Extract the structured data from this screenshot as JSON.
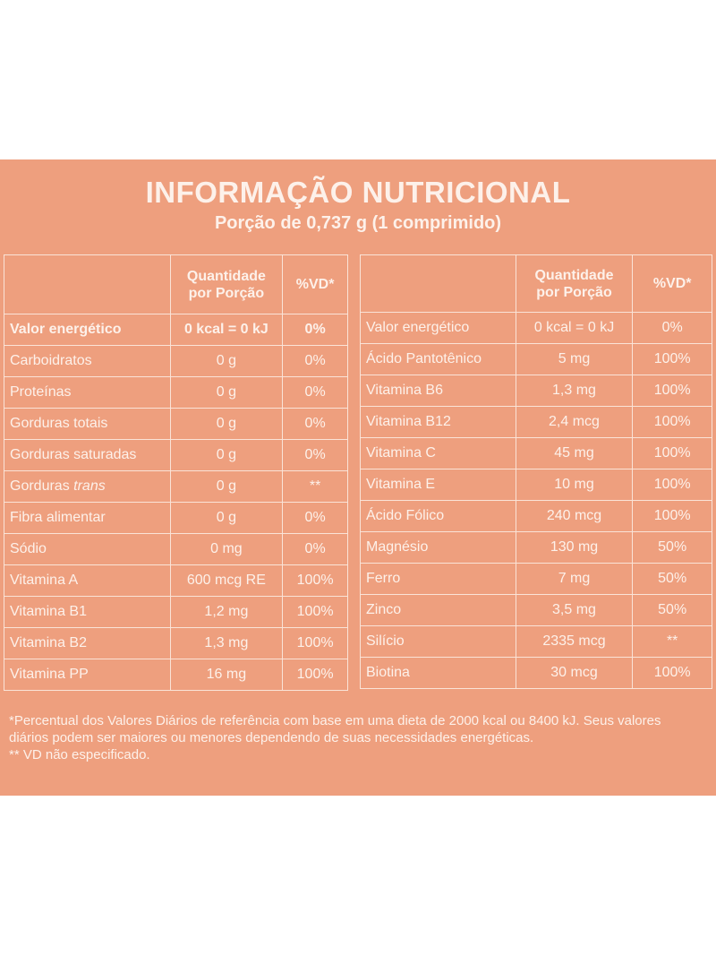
{
  "title": "INFORMAÇÃO NUTRICIONAL",
  "subtitle": "Porção de 0,737 g (1 comprimido)",
  "headers": {
    "qty_line1": "Quantidade",
    "qty_line2": "por Porção",
    "vd": "%VD*"
  },
  "left_rows": [
    {
      "name": "Valor energético",
      "amount": "0 kcal = 0 kJ",
      "vd": "0%"
    },
    {
      "name": "Carboidratos",
      "amount": "0 g",
      "vd": "0%"
    },
    {
      "name": "Proteínas",
      "amount": "0 g",
      "vd": "0%"
    },
    {
      "name": "Gorduras totais",
      "amount": "0 g",
      "vd": "0%"
    },
    {
      "name": "Gorduras saturadas",
      "amount": "0 g",
      "vd": "0%"
    },
    {
      "name": "Gorduras",
      "name_italic": "trans",
      "amount": "0 g",
      "vd": "**"
    },
    {
      "name": "Fibra alimentar",
      "amount": "0 g",
      "vd": "0%"
    },
    {
      "name": "Sódio",
      "amount": "0 mg",
      "vd": "0%"
    },
    {
      "name": "Vitamina A",
      "amount": "600 mcg RE",
      "vd": "100%"
    },
    {
      "name": "Vitamina B1",
      "amount": "1,2 mg",
      "vd": "100%"
    },
    {
      "name": "Vitamina B2",
      "amount": "1,3 mg",
      "vd": "100%"
    },
    {
      "name": "Vitamina PP",
      "amount": "16 mg",
      "vd": "100%"
    }
  ],
  "right_rows": [
    {
      "name": "Valor energético",
      "amount": "0 kcal = 0 kJ",
      "vd": "0%"
    },
    {
      "name": "Ácido Pantotênico",
      "amount": "5 mg",
      "vd": "100%"
    },
    {
      "name": "Vitamina B6",
      "amount": "1,3 mg",
      "vd": "100%"
    },
    {
      "name": "Vitamina B12",
      "amount": "2,4 mcg",
      "vd": "100%"
    },
    {
      "name": "Vitamina C",
      "amount": "45 mg",
      "vd": "100%"
    },
    {
      "name": "Vitamina E",
      "amount": "10 mg",
      "vd": "100%"
    },
    {
      "name": "Ácido Fólico",
      "amount": "240 mcg",
      "vd": "100%"
    },
    {
      "name": "Magnésio",
      "amount": "130 mg",
      "vd": "50%"
    },
    {
      "name": "Ferro",
      "amount": "7 mg",
      "vd": "50%"
    },
    {
      "name": "Zinco",
      "amount": "3,5 mg",
      "vd": "50%"
    },
    {
      "name": "Silício",
      "amount": "2335 mcg",
      "vd": "**"
    },
    {
      "name": "Biotina",
      "amount": "30 mcg",
      "vd": "100%"
    }
  ],
  "footnote": {
    "line1": "*Percentual dos Valores Diários de referência com base em uma dieta de 2000 kcal ou 8400 kJ. Seus valores diários podem ser maiores ou menores dependendo de suas necessidades energéticas.",
    "line2": "** VD não especificado."
  },
  "colors": {
    "panel": "#ee9f7e",
    "text": "#fdf1ea",
    "border": "#fae3d7",
    "background": "#ffffff"
  }
}
